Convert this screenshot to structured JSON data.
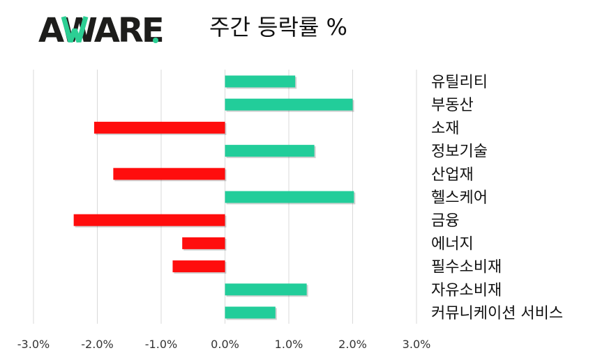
{
  "logo": {
    "text": "AWARE",
    "colors": [
      "#1d1d1b",
      "#2ccf94"
    ]
  },
  "chart_data": {
    "type": "bar",
    "orientation": "horizontal",
    "title": "주간 등락률 %",
    "categories": [
      "유틸리티",
      "부동산",
      "소재",
      "정보기술",
      "산업재",
      "헬스케어",
      "금융",
      "에너지",
      "필수소비재",
      "자유소비재",
      "커뮤니케이션 서비스"
    ],
    "values": [
      1.1,
      2.0,
      -2.05,
      1.4,
      -1.75,
      2.02,
      -2.37,
      -0.67,
      -0.82,
      1.28,
      0.79
    ],
    "xlim": [
      -3.0,
      3.0
    ],
    "xticks": [
      "-3.0%",
      "-2.0%",
      "-1.0%",
      "0.0%",
      "1.0%",
      "2.0%",
      "3.0%"
    ],
    "xtick_values": [
      -3,
      -2,
      -1,
      0,
      1,
      2,
      3
    ],
    "grid": "vertical",
    "colors": {
      "positive": "#22cd9a",
      "negative": "#ff0d0d",
      "grid": "#d9d9d9"
    }
  }
}
